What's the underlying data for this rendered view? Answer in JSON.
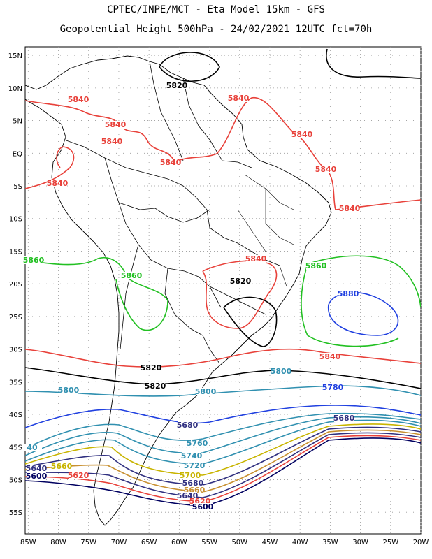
{
  "header": {
    "line1": "CPTEC/INPE/MCT -  Eta Model 15km - GFS",
    "line2": "Geopotential Height 500hPa - 24/02/2021 12UTC fct=70h"
  },
  "axes": {
    "lat_labels": [
      "15N",
      "10N",
      "5N",
      "EQ",
      "5S",
      "10S",
      "15S",
      "20S",
      "25S",
      "30S",
      "35S",
      "40S",
      "45S",
      "50S",
      "55S"
    ],
    "lon_labels": [
      "85W",
      "80W",
      "75W",
      "70W",
      "65W",
      "60W",
      "55W",
      "50W",
      "45W",
      "40W",
      "35W",
      "30W",
      "25W",
      "20W"
    ]
  },
  "contour_labels": [
    {
      "text": "5820",
      "color": "#000000"
    },
    {
      "text": "5840",
      "color": "#e8413a"
    },
    {
      "text": "5840",
      "color": "#e8413a"
    },
    {
      "text": "5840",
      "color": "#e8413a"
    },
    {
      "text": "5840",
      "color": "#e8413a"
    },
    {
      "text": "5840",
      "color": "#e8413a"
    },
    {
      "text": "5840",
      "color": "#e8413a"
    },
    {
      "text": "5840",
      "color": "#e8413a"
    },
    {
      "text": "5840",
      "color": "#e8413a"
    },
    {
      "text": "5860",
      "color": "#22c022"
    },
    {
      "text": "5860",
      "color": "#22c022"
    },
    {
      "text": "5860",
      "color": "#22c022"
    },
    {
      "text": "5840",
      "color": "#e8413a"
    },
    {
      "text": "5820",
      "color": "#000000"
    },
    {
      "text": "5880",
      "color": "#2040e0"
    },
    {
      "text": "5840",
      "color": "#e8413a"
    },
    {
      "text": "5840",
      "color": "#e8413a"
    },
    {
      "text": "5820",
      "color": "#000000"
    },
    {
      "text": "5820",
      "color": "#000000"
    },
    {
      "text": "5800",
      "color": "#3090b0"
    },
    {
      "text": "5800",
      "color": "#3090b0"
    },
    {
      "text": "5800",
      "color": "#3090b0"
    },
    {
      "text": "5780",
      "color": "#2040e0"
    },
    {
      "text": "5680",
      "color": "#303080"
    },
    {
      "text": "5760",
      "color": "#3090b0"
    },
    {
      "text": "5740",
      "color": "#3090b0"
    },
    {
      "text": "5720",
      "color": "#3090b0"
    },
    {
      "text": "5700",
      "color": "#c8b400"
    },
    {
      "text": "5680",
      "color": "#303080"
    },
    {
      "text": "5660",
      "color": "#c89030"
    },
    {
      "text": "5640",
      "color": "#303080"
    },
    {
      "text": "5620",
      "color": "#e8413a"
    },
    {
      "text": "5600",
      "color": "#000060"
    },
    {
      "text": "5680",
      "color": "#303080"
    },
    {
      "text": "5660",
      "color": "#c8b400"
    },
    {
      "text": "5640",
      "color": "#303080"
    },
    {
      "text": "5620",
      "color": "#e8413a"
    },
    {
      "text": "5600",
      "color": "#000060"
    },
    {
      "text": "40",
      "color": "#3090b0"
    }
  ]
}
